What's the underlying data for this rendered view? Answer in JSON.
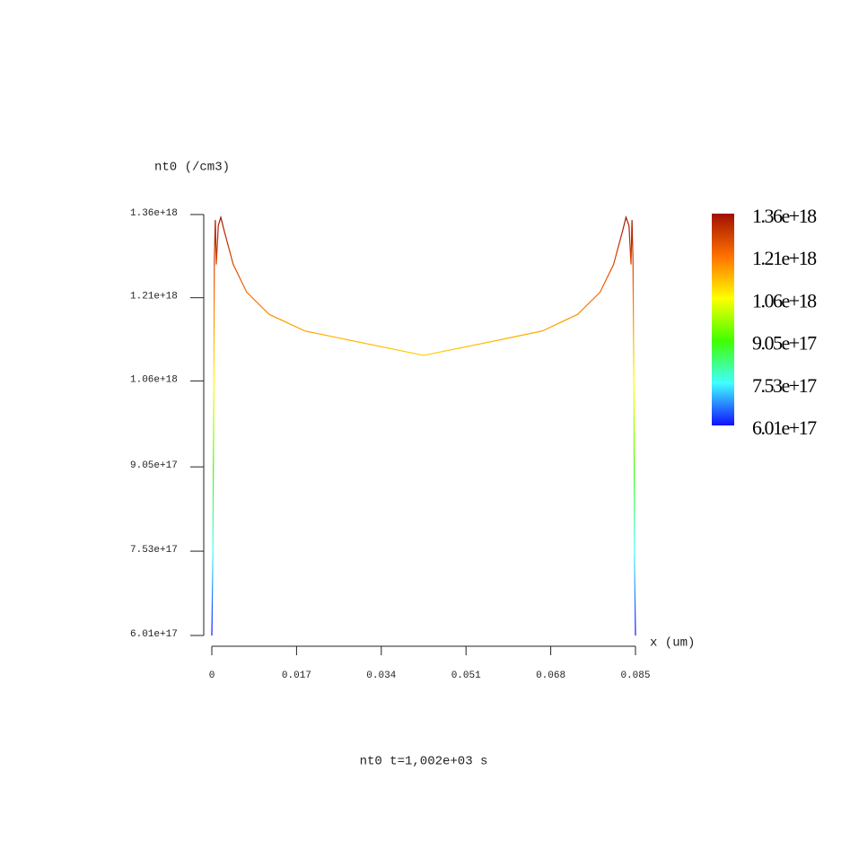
{
  "chart_data": {
    "type": "line",
    "ylabel": "nt0 (/cm3)",
    "xlabel": "x (um)",
    "title": "nt0 t=1,002e+03 s",
    "x": [
      0,
      0.0002,
      0.0004,
      0.0005,
      0.0007,
      0.0009,
      0.0013,
      0.0018,
      0.0025,
      0.0043,
      0.007,
      0.0115,
      0.0187,
      0.0295,
      0.0425,
      0.0556,
      0.0663,
      0.0734,
      0.0779,
      0.0806,
      0.0824,
      0.0831,
      0.0837,
      0.0841,
      0.0843,
      0.0845,
      0.0847,
      0.0848,
      0.085
    ],
    "values": [
      6.01e+17,
      7.43e+17,
      1.05e+18,
      1.28e+18,
      1.35e+18,
      1.27e+18,
      1.34e+18,
      1.355e+18,
      1.33e+18,
      1.27e+18,
      1.22e+18,
      1.18e+18,
      1.15e+18,
      1.13e+18,
      1.106e+18,
      1.13e+18,
      1.15e+18,
      1.18e+18,
      1.22e+18,
      1.27e+18,
      1.33e+18,
      1.355e+18,
      1.34e+18,
      1.27e+18,
      1.35e+18,
      1.28e+18,
      1.02e+18,
      7.35e+17,
      6.01e+17
    ],
    "xlim": [
      0,
      0.085
    ],
    "xticks": [
      0,
      0.017,
      0.034,
      0.051,
      0.068,
      0.085
    ],
    "ylim": [
      6.01e+17,
      1.36e+18
    ],
    "yticks": [
      {
        "value": 6.01e+17,
        "label": "6.01e+17"
      },
      {
        "value": 7.53e+17,
        "label": "7.53e+17"
      },
      {
        "value": 9.05e+17,
        "label": "9.05e+17"
      },
      {
        "value": 1.06e+18,
        "label": "1.06e+18"
      },
      {
        "value": 1.21e+18,
        "label": "1.21e+18"
      },
      {
        "value": 1.36e+18,
        "label": "1.36e+18"
      }
    ],
    "colormap": [
      "#1010ff",
      "#40ffff",
      "#40ff00",
      "#ffff00",
      "#ff7000",
      "#a01000"
    ],
    "colorbar": true
  }
}
